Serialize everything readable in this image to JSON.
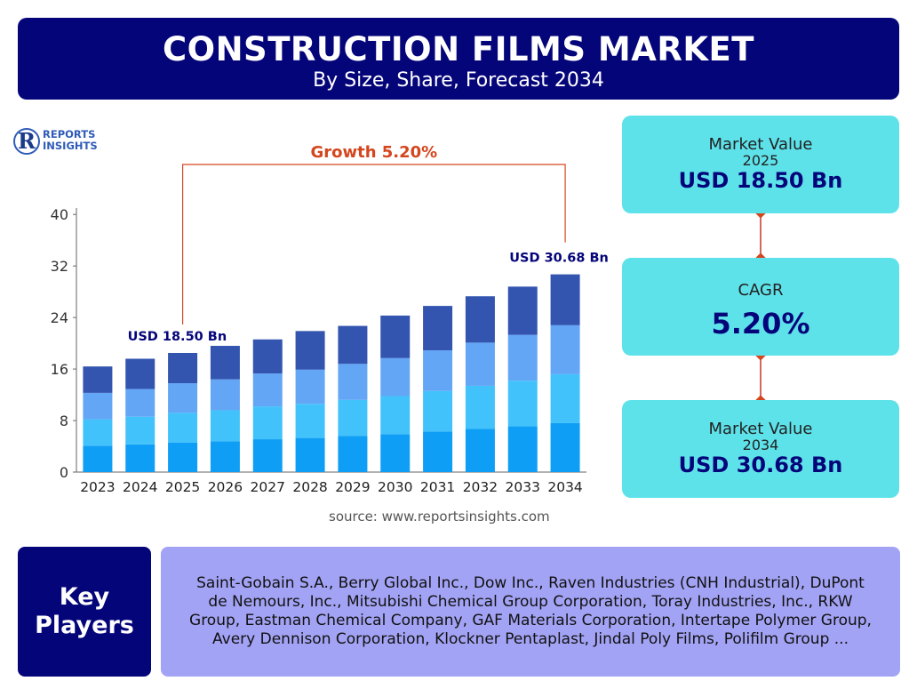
{
  "header": {
    "title": "CONSTRUCTION FILMS MARKET",
    "subtitle": "By Size, Share, Forecast 2034"
  },
  "logo": {
    "mark": "R",
    "line1": "REPORTS",
    "line2": "INSIGHTS"
  },
  "chart_data": {
    "type": "bar",
    "stacked": true,
    "categories": [
      "2023",
      "2024",
      "2025",
      "2026",
      "2027",
      "2028",
      "2029",
      "2030",
      "2031",
      "2032",
      "2033",
      "2034"
    ],
    "series": [
      {
        "values": [
          4.1,
          4.3,
          4.6,
          4.8,
          5.1,
          5.3,
          5.6,
          5.9,
          6.3,
          6.7,
          7.1,
          7.6
        ]
      },
      {
        "values": [
          4.1,
          4.3,
          4.6,
          4.8,
          5.1,
          5.3,
          5.6,
          5.9,
          6.3,
          6.7,
          7.1,
          7.6
        ]
      },
      {
        "values": [
          4.1,
          4.3,
          4.6,
          4.8,
          5.1,
          5.3,
          5.6,
          5.9,
          6.3,
          6.7,
          7.1,
          7.6
        ]
      },
      {
        "values": [
          4.1,
          4.7,
          4.7,
          5.2,
          5.3,
          6.0,
          5.9,
          6.6,
          6.9,
          7.2,
          7.5,
          7.9
        ]
      }
    ],
    "yticks": [
      0,
      8,
      16,
      24,
      32,
      40
    ],
    "ylim": [
      0,
      41
    ],
    "colors": [
      "#0f9ef5",
      "#42c2fb",
      "#63a6f6",
      "#3355b0"
    ],
    "annotations": {
      "start_label": "USD 18.50 Bn",
      "end_label": "USD 30.68 Bn",
      "growth_label": "Growth 5.20%"
    }
  },
  "source": "source: www.reportsinsights.com",
  "cards": {
    "value2025": {
      "label": "Market Value",
      "year": "2025",
      "value": "USD 18.50 Bn"
    },
    "cagr": {
      "label": "CAGR",
      "value": "5.20%"
    },
    "value2034": {
      "label": "Market Value",
      "year": "2034",
      "value": "USD 30.68 Bn"
    }
  },
  "key_players": {
    "title_line1": "Key",
    "title_line2": "Players",
    "text": "Saint-Gobain S.A., Berry Global Inc., Dow Inc., Raven Industries (CNH Industrial), DuPont de Nemours, Inc., Mitsubishi Chemical Group Corporation, Toray Industries, Inc., RKW Group, Eastman Chemical Company, GAF Materials Corporation, Intertape Polymer Group, Avery Dennison Corporation, Klockner Pentaplast, Jindal Poly Films, Polifilm Group ..."
  },
  "colors": {
    "navy": "#05057a",
    "cyan": "#5ee2ea",
    "lavender": "#a3a3f5",
    "growth": "#d4461e"
  }
}
